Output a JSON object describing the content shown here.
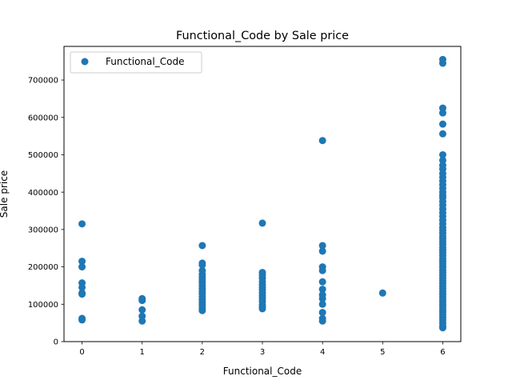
{
  "chart_data": {
    "type": "scatter",
    "title": "Functional_Code by Sale price",
    "xlabel": "Functional_Code",
    "ylabel": "Sale price",
    "xlim": [
      -0.3,
      6.3
    ],
    "ylim": [
      0,
      790000
    ],
    "xticks": [
      0,
      1,
      2,
      3,
      4,
      5,
      6
    ],
    "xtick_labels": [
      "0",
      "1",
      "2",
      "3",
      "4",
      "5",
      "6"
    ],
    "yticks": [
      0,
      100000,
      200000,
      300000,
      400000,
      500000,
      600000,
      700000
    ],
    "ytick_labels": [
      "0",
      "100000",
      "200000",
      "300000",
      "400000",
      "500000",
      "600000",
      "700000"
    ],
    "grid": false,
    "legend": {
      "placement": "upper-left",
      "entries": [
        "Functional_Code"
      ]
    },
    "series": [
      {
        "name": "Functional_Code",
        "color": "#1f77b4",
        "points": [
          [
            0,
            315000
          ],
          [
            0,
            215000
          ],
          [
            0,
            200000
          ],
          [
            0,
            157000
          ],
          [
            0,
            145000
          ],
          [
            0,
            130000
          ],
          [
            0,
            127000
          ],
          [
            0,
            62000
          ],
          [
            0,
            58000
          ],
          [
            1,
            115000
          ],
          [
            1,
            110000
          ],
          [
            1,
            85000
          ],
          [
            1,
            68000
          ],
          [
            1,
            55000
          ],
          [
            2,
            257000
          ],
          [
            2,
            210000
          ],
          [
            2,
            205000
          ],
          [
            2,
            190000
          ],
          [
            2,
            180000
          ],
          [
            2,
            172000
          ],
          [
            2,
            165000
          ],
          [
            2,
            158000
          ],
          [
            2,
            150000
          ],
          [
            2,
            142000
          ],
          [
            2,
            135000
          ],
          [
            2,
            128000
          ],
          [
            2,
            120000
          ],
          [
            2,
            112000
          ],
          [
            2,
            105000
          ],
          [
            2,
            98000
          ],
          [
            2,
            90000
          ],
          [
            2,
            83000
          ],
          [
            3,
            317000
          ],
          [
            3,
            185000
          ],
          [
            3,
            178000
          ],
          [
            3,
            170000
          ],
          [
            3,
            160000
          ],
          [
            3,
            152000
          ],
          [
            3,
            145000
          ],
          [
            3,
            138000
          ],
          [
            3,
            130000
          ],
          [
            3,
            122000
          ],
          [
            3,
            115000
          ],
          [
            3,
            107000
          ],
          [
            3,
            98000
          ],
          [
            3,
            92000
          ],
          [
            3,
            88000
          ],
          [
            4,
            538000
          ],
          [
            4,
            257000
          ],
          [
            4,
            242000
          ],
          [
            4,
            200000
          ],
          [
            4,
            190000
          ],
          [
            4,
            160000
          ],
          [
            4,
            140000
          ],
          [
            4,
            125000
          ],
          [
            4,
            115000
          ],
          [
            4,
            100000
          ],
          [
            4,
            78000
          ],
          [
            4,
            62000
          ],
          [
            4,
            55000
          ],
          [
            5,
            130000
          ],
          [
            6,
            755000
          ],
          [
            6,
            745000
          ],
          [
            6,
            625000
          ],
          [
            6,
            612000
          ],
          [
            6,
            582000
          ],
          [
            6,
            556000
          ],
          [
            6,
            500000
          ],
          [
            6,
            485000
          ],
          [
            6,
            472000
          ],
          [
            6,
            462000
          ],
          [
            6,
            450000
          ],
          [
            6,
            440000
          ],
          [
            6,
            430000
          ],
          [
            6,
            420000
          ],
          [
            6,
            410000
          ],
          [
            6,
            400000
          ],
          [
            6,
            392000
          ],
          [
            6,
            385000
          ],
          [
            6,
            375000
          ],
          [
            6,
            365000
          ],
          [
            6,
            355000
          ],
          [
            6,
            345000
          ],
          [
            6,
            335000
          ],
          [
            6,
            325000
          ],
          [
            6,
            315000
          ],
          [
            6,
            305000
          ],
          [
            6,
            298000
          ],
          [
            6,
            290000
          ],
          [
            6,
            282000
          ],
          [
            6,
            275000
          ],
          [
            6,
            268000
          ],
          [
            6,
            260000
          ],
          [
            6,
            252000
          ],
          [
            6,
            245000
          ],
          [
            6,
            238000
          ],
          [
            6,
            230000
          ],
          [
            6,
            222000
          ],
          [
            6,
            215000
          ],
          [
            6,
            208000
          ],
          [
            6,
            200000
          ],
          [
            6,
            192000
          ],
          [
            6,
            185000
          ],
          [
            6,
            178000
          ],
          [
            6,
            170000
          ],
          [
            6,
            163000
          ],
          [
            6,
            156000
          ],
          [
            6,
            149000
          ],
          [
            6,
            142000
          ],
          [
            6,
            135000
          ],
          [
            6,
            128000
          ],
          [
            6,
            121000
          ],
          [
            6,
            114000
          ],
          [
            6,
            107000
          ],
          [
            6,
            100000
          ],
          [
            6,
            93000
          ],
          [
            6,
            86000
          ],
          [
            6,
            79000
          ],
          [
            6,
            72000
          ],
          [
            6,
            65000
          ],
          [
            6,
            58000
          ],
          [
            6,
            50000
          ],
          [
            6,
            42000
          ],
          [
            6,
            37000
          ]
        ]
      }
    ]
  }
}
